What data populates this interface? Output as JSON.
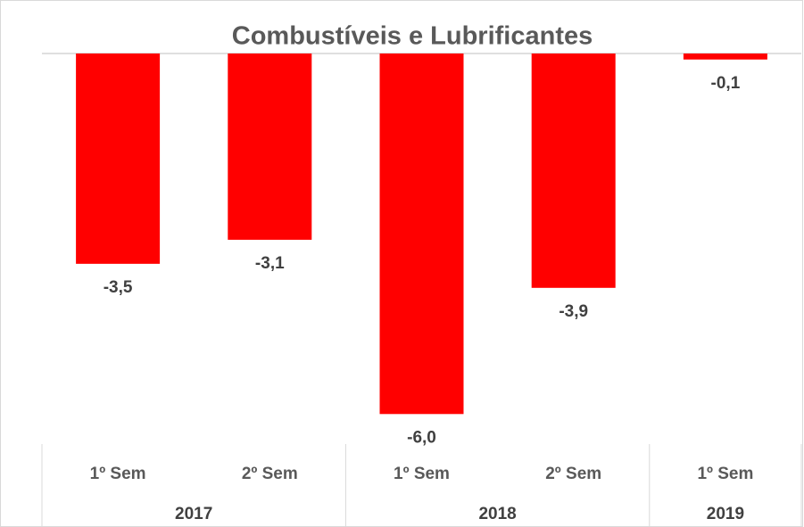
{
  "chart_data": {
    "type": "bar",
    "title": "Combustíveis e Lubrificantes",
    "groups": [
      {
        "name": "2017",
        "categories": [
          "1º Sem",
          "2º Sem"
        ]
      },
      {
        "name": "2018",
        "categories": [
          "1º Sem",
          "2º Sem"
        ]
      },
      {
        "name": "2019",
        "categories": [
          "1º Sem"
        ]
      }
    ],
    "values": [
      -3.5,
      -3.1,
      -6.0,
      -3.9,
      -0.1
    ],
    "value_labels": [
      "-3,5",
      "-3,1",
      "-6,0",
      "-3,9",
      "-0,1"
    ],
    "color": "#ff0000",
    "ylim": [
      -6.5,
      0
    ]
  }
}
